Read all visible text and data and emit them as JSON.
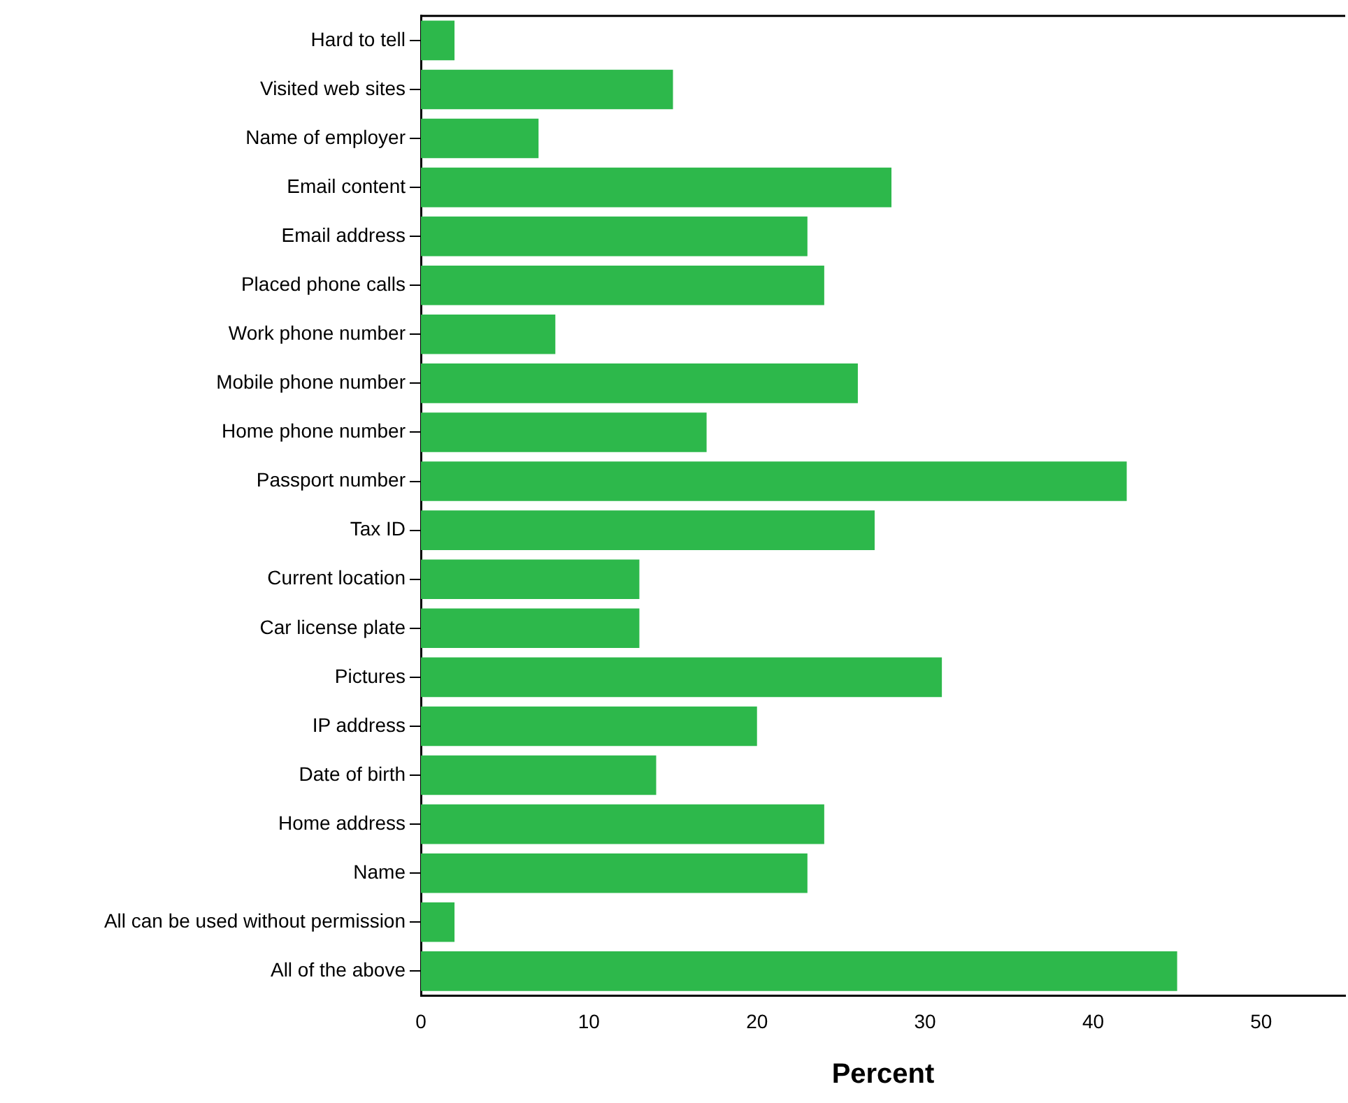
{
  "chart_data": {
    "type": "bar",
    "orientation": "horizontal",
    "xlabel": "Percent",
    "categories": [
      "Hard to tell",
      "Visited web sites",
      "Name of employer",
      "Email content",
      "Email address",
      "Placed phone calls",
      "Work phone number",
      "Mobile phone number",
      "Home phone number",
      "Passport number",
      "Tax ID",
      "Current location",
      "Car license plate",
      "Pictures",
      "IP address",
      "Date of birth",
      "Home address",
      "Name",
      "All can be used without permission",
      "All of the above"
    ],
    "values": [
      2,
      15,
      7,
      28,
      23,
      24,
      8,
      26,
      17,
      42,
      27,
      13,
      13,
      31,
      20,
      14,
      24,
      23,
      2,
      45
    ],
    "color": "#2db84b",
    "xlim": [
      0,
      55
    ],
    "xticks": [
      0,
      10,
      20,
      30,
      40,
      50
    ],
    "grid": false,
    "legend": false
  }
}
